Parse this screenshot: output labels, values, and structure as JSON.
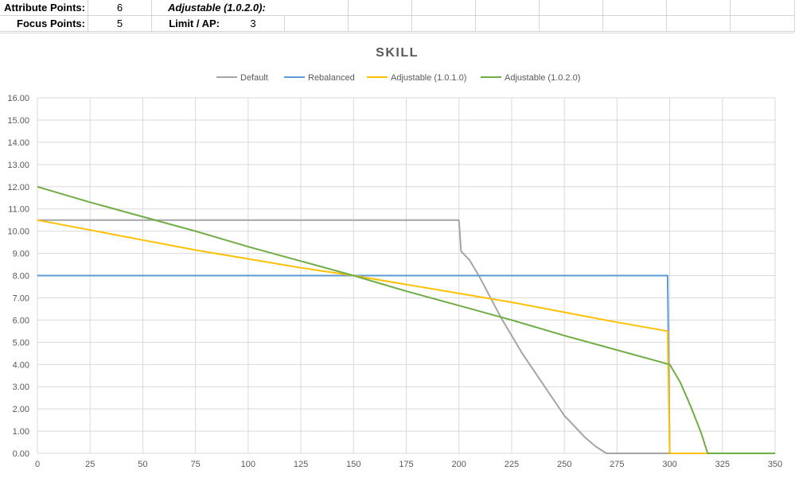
{
  "header": {
    "row1": {
      "attr_label": "Attribute Points:",
      "attr_value": "6",
      "adjustable_label": "Adjustable (1.0.2.0):"
    },
    "row2": {
      "focus_label": "Focus Points:",
      "focus_value": "5",
      "limit_label": "Limit / AP:",
      "limit_value": "3"
    }
  },
  "chart_data": {
    "type": "line",
    "title": "SKILL",
    "xlabel": "",
    "ylabel": "",
    "xlim": [
      0,
      350
    ],
    "ylim": [
      0,
      16
    ],
    "x_ticks": [
      "0",
      "25",
      "50",
      "75",
      "100",
      "125",
      "150",
      "175",
      "200",
      "225",
      "250",
      "275",
      "300",
      "325",
      "350"
    ],
    "y_ticks": [
      "0.00",
      "1.00",
      "2.00",
      "3.00",
      "4.00",
      "5.00",
      "6.00",
      "7.00",
      "8.00",
      "9.00",
      "10.00",
      "11.00",
      "12.00",
      "13.00",
      "14.00",
      "15.00",
      "16.00"
    ],
    "grid": true,
    "legend_position": "top",
    "series": [
      {
        "name": "Default",
        "color": "#a5a5a5",
        "points": [
          [
            0,
            10.5
          ],
          [
            200,
            10.5
          ],
          [
            201,
            9.1
          ],
          [
            205,
            8.7
          ],
          [
            210,
            7.9
          ],
          [
            215,
            7.0
          ],
          [
            220,
            6.1
          ],
          [
            225,
            5.3
          ],
          [
            230,
            4.5
          ],
          [
            235,
            3.8
          ],
          [
            240,
            3.1
          ],
          [
            245,
            2.4
          ],
          [
            250,
            1.7
          ],
          [
            255,
            1.2
          ],
          [
            260,
            0.7
          ],
          [
            265,
            0.3
          ],
          [
            270,
            0.0
          ],
          [
            275,
            0.0
          ],
          [
            300,
            0.0
          ]
        ]
      },
      {
        "name": "Rebalanced",
        "color": "#5b9bd5",
        "points": [
          [
            0,
            8.0
          ],
          [
            299,
            8.0
          ],
          [
            300,
            0.0
          ]
        ]
      },
      {
        "name": "Adjustable (1.0.1.0)",
        "color": "#ffc000",
        "points": [
          [
            0,
            10.5
          ],
          [
            25,
            10.05
          ],
          [
            50,
            9.6
          ],
          [
            75,
            9.15
          ],
          [
            100,
            8.75
          ],
          [
            125,
            8.35
          ],
          [
            150,
            8.0
          ],
          [
            175,
            7.6
          ],
          [
            200,
            7.2
          ],
          [
            225,
            6.8
          ],
          [
            250,
            6.35
          ],
          [
            275,
            5.9
          ],
          [
            299,
            5.5
          ],
          [
            300,
            0.0
          ],
          [
            318,
            0.0
          ]
        ]
      },
      {
        "name": "Adjustable (1.0.2.0)",
        "color": "#70ad47",
        "points": [
          [
            0,
            12.0
          ],
          [
            25,
            11.3
          ],
          [
            50,
            10.65
          ],
          [
            75,
            10.0
          ],
          [
            100,
            9.3
          ],
          [
            125,
            8.65
          ],
          [
            150,
            8.0
          ],
          [
            175,
            7.3
          ],
          [
            200,
            6.65
          ],
          [
            225,
            6.0
          ],
          [
            250,
            5.3
          ],
          [
            275,
            4.65
          ],
          [
            300,
            4.0
          ],
          [
            305,
            3.2
          ],
          [
            310,
            2.1
          ],
          [
            315,
            0.9
          ],
          [
            318,
            0.0
          ],
          [
            350,
            0.0
          ]
        ]
      }
    ]
  }
}
